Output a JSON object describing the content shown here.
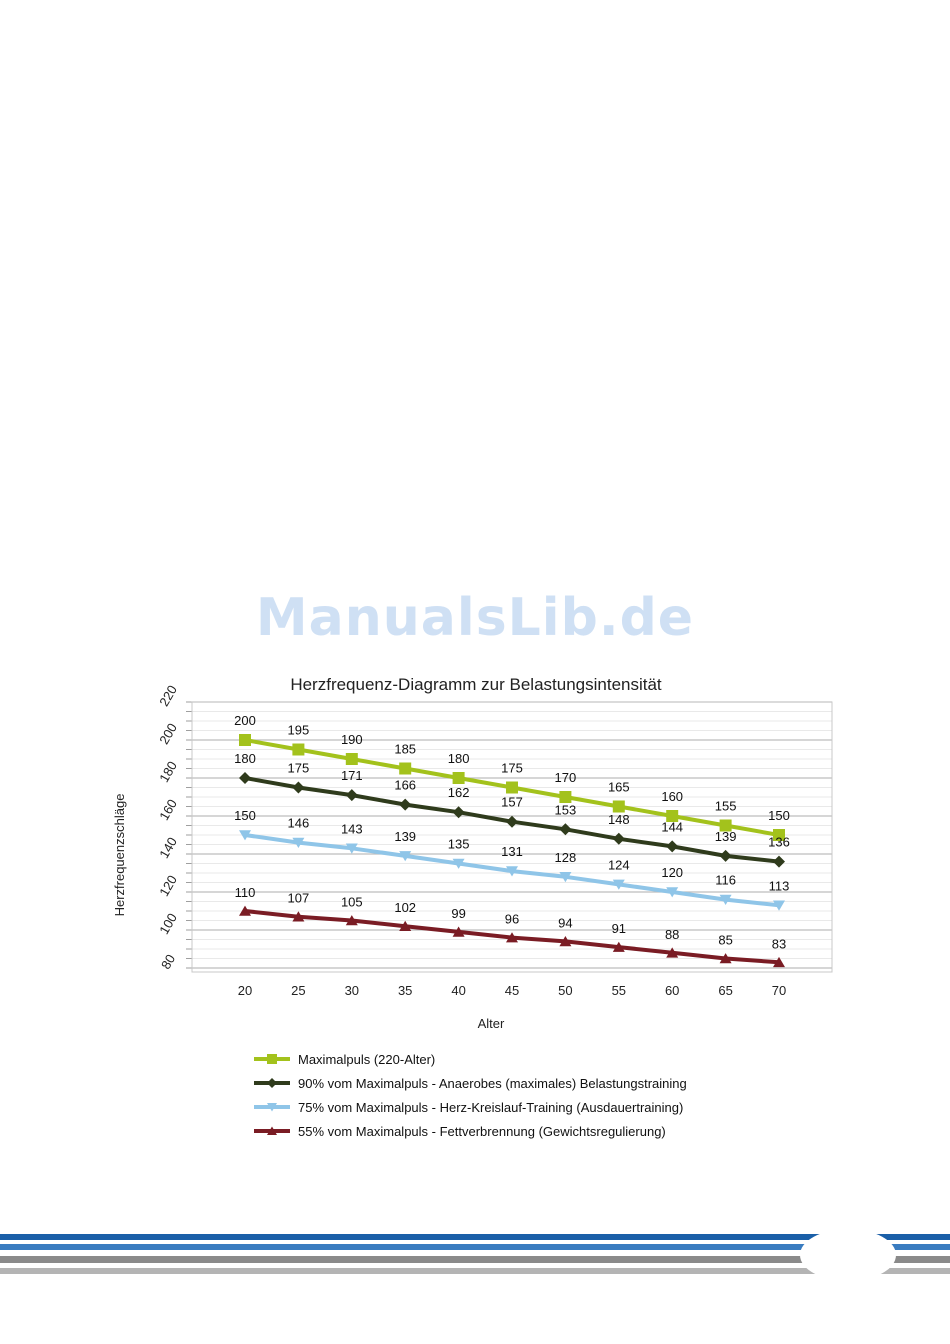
{
  "watermark": "ManualsLib.de",
  "chart_data": {
    "type": "line",
    "title": "Herzfrequenz-Diagramm zur Belastungsintensität",
    "xlabel": "Alter",
    "ylabel": "Herzfrequenzschläge",
    "x": [
      20,
      25,
      30,
      35,
      40,
      45,
      50,
      55,
      60,
      65,
      70
    ],
    "ylim": [
      80,
      220
    ],
    "yticks": [
      80,
      100,
      120,
      140,
      160,
      180,
      200,
      220
    ],
    "grid": true,
    "legend_position": "bottom",
    "series": [
      {
        "name": "Maximalpuls (220-Alter)",
        "color": "#a3c21c",
        "marker": "square",
        "values": [
          200,
          195,
          190,
          185,
          180,
          175,
          170,
          165,
          160,
          155,
          150
        ]
      },
      {
        "name": "90% vom Maximalpuls - Anaerobes (maximales) Belastungstraining",
        "color": "#2f3b1c",
        "marker": "diamond",
        "values": [
          180,
          175,
          171,
          166,
          162,
          157,
          153,
          148,
          144,
          139,
          136
        ]
      },
      {
        "name": "75% vom Maximalpuls - Herz-Kreislauf-Training (Ausdauertraining)",
        "color": "#8fc5e8",
        "marker": "triangle-down",
        "values": [
          150,
          146,
          143,
          139,
          135,
          131,
          128,
          124,
          120,
          116,
          113
        ]
      },
      {
        "name": "55% vom Maximalpuls - Fettverbrennung (Gewichtsregulierung)",
        "color": "#7a1c24",
        "marker": "triangle-up",
        "values": [
          110,
          107,
          105,
          102,
          99,
          96,
          94,
          91,
          88,
          85,
          83
        ]
      }
    ]
  },
  "footer": {
    "stripe_colors": [
      "#1a5fa8",
      "#3a7cc0",
      "#8a8a8a",
      "#b4b4b4"
    ]
  }
}
